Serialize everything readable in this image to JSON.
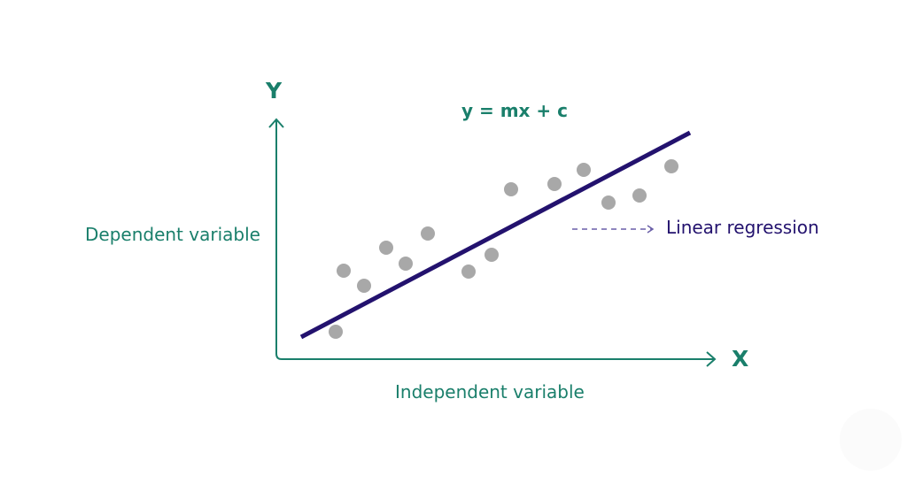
{
  "diagram": {
    "equation": "y = mx + c",
    "y_axis_letter": "Y",
    "x_axis_letter": "X",
    "y_axis_label": "Dependent variable",
    "x_axis_label": "Independent variable",
    "regression_label": "Linear regression",
    "colors": {
      "axis": "#1a7f6b",
      "line": "#23126e",
      "points": "#a8a8a8",
      "leader": "#6a5fa8"
    }
  }
}
